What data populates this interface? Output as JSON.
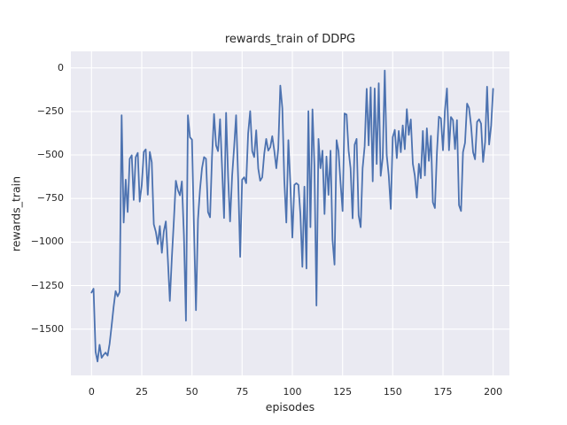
{
  "chart_data": {
    "type": "line",
    "title": "rewards_train of DDPG",
    "xlabel": "episodes",
    "ylabel": "rewards_train",
    "x_ticks": [
      0,
      25,
      50,
      75,
      100,
      125,
      150,
      175,
      200
    ],
    "x_tick_labels": [
      "0",
      "25",
      "50",
      "75",
      "100",
      "125",
      "150",
      "175",
      "200"
    ],
    "y_ticks": [
      0,
      -250,
      -500,
      -750,
      -1000,
      -1250,
      -1500
    ],
    "y_tick_labels": [
      "0",
      "−250",
      "−500",
      "−750",
      "−1000",
      "−1250",
      "−1500"
    ],
    "xlim": [
      -10.3,
      208.1
    ],
    "ylim": [
      -1766,
      95
    ],
    "grid": true,
    "legend_position": "none",
    "plot_background": "#EAEAF2",
    "grid_color": "#FFFFFF",
    "line_color": "#4C72B0",
    "text_color": "#262626",
    "series": [
      {
        "name": "rewards_train",
        "x_start": 0,
        "x_step": 1,
        "values": [
          -1290,
          -1268,
          -1630,
          -1686,
          -1590,
          -1665,
          -1648,
          -1635,
          -1652,
          -1585,
          -1480,
          -1370,
          -1282,
          -1312,
          -1286,
          -272,
          -888,
          -642,
          -828,
          -522,
          -502,
          -758,
          -512,
          -488,
          -768,
          -672,
          -482,
          -468,
          -728,
          -482,
          -542,
          -898,
          -942,
          -1012,
          -908,
          -1062,
          -938,
          -882,
          -1102,
          -1338,
          -1088,
          -872,
          -648,
          -702,
          -732,
          -652,
          -962,
          -1452,
          -272,
          -398,
          -412,
          -905,
          -1392,
          -868,
          -702,
          -576,
          -512,
          -522,
          -828,
          -858,
          -512,
          -265,
          -445,
          -478,
          -295,
          -578,
          -862,
          -258,
          -628,
          -882,
          -622,
          -452,
          -272,
          -632,
          -1085,
          -642,
          -628,
          -662,
          -375,
          -248,
          -478,
          -512,
          -358,
          -578,
          -648,
          -628,
          -492,
          -408,
          -475,
          -455,
          -392,
          -475,
          -576,
          -462,
          -102,
          -232,
          -645,
          -888,
          -415,
          -662,
          -975,
          -672,
          -662,
          -672,
          -842,
          -1142,
          -682,
          -1152,
          -248,
          -915,
          -238,
          -560,
          -1365,
          -408,
          -576,
          -475,
          -839,
          -509,
          -729,
          -475,
          -985,
          -1130,
          -415,
          -478,
          -661,
          -822,
          -262,
          -268,
          -475,
          -576,
          -864,
          -441,
          -408,
          -847,
          -915,
          -576,
          -450,
          -120,
          -445,
          -112,
          -652,
          -118,
          -552,
          -88,
          -620,
          -515,
          -15,
          -500,
          -618,
          -810,
          -398,
          -356,
          -518,
          -362,
          -484,
          -330,
          -467,
          -237,
          -385,
          -296,
          -551,
          -618,
          -745,
          -551,
          -633,
          -362,
          -618,
          -347,
          -534,
          -390,
          -772,
          -805,
          -484,
          -280,
          -290,
          -473,
          -245,
          -118,
          -473,
          -282,
          -300,
          -466,
          -300,
          -788,
          -822,
          -484,
          -430,
          -205,
          -230,
          -330,
          -484,
          -525,
          -310,
          -295,
          -320,
          -540,
          -425,
          -108,
          -440,
          -330,
          -120
        ]
      }
    ]
  }
}
